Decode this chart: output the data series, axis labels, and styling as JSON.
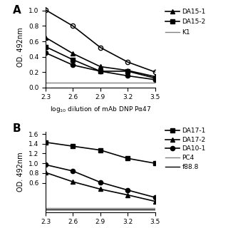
{
  "panel_A": {
    "x": [
      2.3,
      2.6,
      2.9,
      3.2,
      3.5
    ],
    "series": {
      "open_circle": {
        "y": [
          1.01,
          0.8,
          0.52,
          0.33,
          0.2
        ],
        "marker": "o",
        "fillstyle": "none",
        "color": "black",
        "linewidth": 1.2,
        "markersize": 5
      },
      "DA15-1": {
        "y": [
          0.65,
          0.44,
          0.27,
          0.22,
          0.14
        ],
        "marker": "^",
        "fillstyle": "full",
        "color": "black",
        "linewidth": 1.2,
        "markersize": 5
      },
      "DA15-2": {
        "y": [
          0.53,
          0.36,
          0.21,
          0.21,
          0.12
        ],
        "marker": "s",
        "fillstyle": "full",
        "color": "black",
        "linewidth": 1.2,
        "markersize": 5
      },
      "solid_circle": {
        "y": [
          0.45,
          0.29,
          0.21,
          0.15,
          0.1
        ],
        "marker": "o",
        "fillstyle": "full",
        "color": "black",
        "linewidth": 1.2,
        "markersize": 5
      },
      "K1": {
        "y": [
          0.065,
          0.065,
          0.065,
          0.065,
          0.065
        ],
        "marker": null,
        "color": "gray",
        "linewidth": 1.0
      }
    },
    "xlabel": "log$_{10}$ dilution of mAb DNP Pα47",
    "ylabel": "OD. 492nm",
    "ylim": [
      0,
      1.05
    ],
    "yticks": [
      0,
      0.2,
      0.4,
      0.6,
      0.8,
      1.0
    ],
    "xticks": [
      2.3,
      2.6,
      2.9,
      3.2,
      3.5
    ],
    "panel_label": "A"
  },
  "panel_B": {
    "x": [
      2.3,
      2.6,
      2.9,
      3.2,
      3.5
    ],
    "series": {
      "DA17-1": {
        "y": [
          1.43,
          1.35,
          1.27,
          1.1,
          1.0
        ],
        "marker": "s",
        "fillstyle": "full",
        "color": "black",
        "linewidth": 1.2,
        "markersize": 5
      },
      "DA10-1": {
        "y": [
          0.97,
          0.84,
          0.61,
          0.45,
          0.3
        ],
        "marker": "o",
        "fillstyle": "full",
        "color": "black",
        "linewidth": 1.2,
        "markersize": 5
      },
      "DA17-2": {
        "y": [
          0.81,
          0.62,
          0.47,
          0.35,
          0.22
        ],
        "marker": "^",
        "fillstyle": "full",
        "color": "black",
        "linewidth": 1.2,
        "markersize": 5
      },
      "PC4": {
        "y": [
          0.08,
          0.08,
          0.08,
          0.08,
          0.08
        ],
        "marker": null,
        "color": "gray",
        "linewidth": 1.0
      },
      "f88.8": {
        "y": [
          0.05,
          0.05,
          0.05,
          0.05,
          0.05
        ],
        "marker": null,
        "color": "black",
        "linewidth": 1.0
      }
    },
    "xlabel": "",
    "ylabel": "OD. 492nm",
    "ylim": [
      0,
      1.65
    ],
    "yticks": [
      0.6,
      0.8,
      1.0,
      1.2,
      1.4,
      1.6
    ],
    "xticks": [
      2.3,
      2.6,
      2.9,
      3.2,
      3.5
    ],
    "panel_label": "B"
  },
  "figure_bg": "#ffffff"
}
